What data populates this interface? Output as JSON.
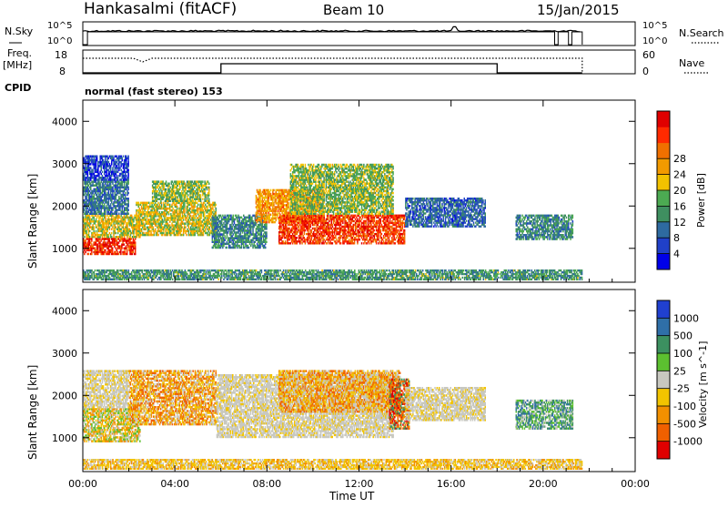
{
  "header": {
    "station": "Hankasalmi (fitACF)",
    "beam": "Beam 10",
    "date": "15/Jan/2015"
  },
  "noise_panel": {
    "left_label": "N.Sky",
    "right_label": "N.Search",
    "left_ticks": [
      "10^5",
      "10^0"
    ],
    "right_ticks": [
      "10^5",
      "10^0"
    ],
    "search_noise_steps": [
      {
        "x": 0.0,
        "level": "low"
      },
      {
        "x": 0.2,
        "level": "high"
      },
      {
        "x": 20.5,
        "level": "low"
      },
      {
        "x": 20.65,
        "level": "high"
      },
      {
        "x": 21.1,
        "level": "low"
      },
      {
        "x": 21.25,
        "level": "high"
      },
      {
        "x": 21.7,
        "level": "low"
      }
    ]
  },
  "freq_panel": {
    "left_label_1": "Freq.",
    "left_label_2": "[MHz]",
    "right_label": "Nave",
    "left_ticks": [
      "18",
      "8"
    ],
    "right_ticks": [
      "60",
      "0"
    ]
  },
  "cpid": {
    "label": "CPID",
    "program": "normal (fast stereo) 153"
  },
  "chart_data": [
    {
      "type": "heatmap",
      "title": "",
      "quantity": "Power",
      "xlabel": "",
      "ylabel": "Slant Range [km]",
      "x_unit_hours": [
        0,
        24
      ],
      "ylim": [
        200,
        4500
      ],
      "yticks": [
        1000,
        2000,
        3000,
        4000
      ],
      "colorbar": {
        "label": "Power [dB]",
        "ticks": [
          "4",
          "8",
          "12",
          "16",
          "20",
          "24",
          "28"
        ],
        "colors": [
          "#0000e8",
          "#2040c8",
          "#2e6aa0",
          "#3f8f60",
          "#4caa52",
          "#f2c200",
          "#f29a00",
          "#f07000",
          "#ff2a00",
          "#e00000"
        ]
      },
      "regions": [
        {
          "t": [
            0.0,
            2.3
          ],
          "r": [
            850,
            1250
          ],
          "level": 0.92
        },
        {
          "t": [
            0.0,
            2.5
          ],
          "r": [
            1250,
            1800
          ],
          "level": 0.55
        },
        {
          "t": [
            0.0,
            2.0
          ],
          "r": [
            1800,
            2600
          ],
          "level": 0.25
        },
        {
          "t": [
            0.0,
            2.0
          ],
          "r": [
            2600,
            3200
          ],
          "level": 0.12
        },
        {
          "t": [
            2.3,
            5.8
          ],
          "r": [
            1300,
            2100
          ],
          "level": 0.55
        },
        {
          "t": [
            3.0,
            5.5
          ],
          "r": [
            2100,
            2600
          ],
          "level": 0.45
        },
        {
          "t": [
            5.6,
            8.0
          ],
          "r": [
            1000,
            1800
          ],
          "level": 0.3
        },
        {
          "t": [
            7.5,
            10.5
          ],
          "r": [
            1600,
            2400
          ],
          "level": 0.7
        },
        {
          "t": [
            8.5,
            14.0
          ],
          "r": [
            1100,
            1800
          ],
          "level": 0.88
        },
        {
          "t": [
            9.0,
            13.5
          ],
          "r": [
            1800,
            3000
          ],
          "level": 0.45
        },
        {
          "t": [
            14.0,
            17.5
          ],
          "r": [
            1500,
            2200
          ],
          "level": 0.2
        },
        {
          "t": [
            18.8,
            21.3
          ],
          "r": [
            1200,
            1800
          ],
          "level": 0.3
        },
        {
          "t": [
            0.0,
            21.7
          ],
          "r": [
            250,
            500
          ],
          "level": 0.35
        }
      ]
    },
    {
      "type": "heatmap",
      "title": "",
      "quantity": "Velocity",
      "xlabel": "Time UT",
      "ylabel": "Slant Range [km]",
      "x_unit_hours": [
        0,
        24
      ],
      "xticks": [
        "00:00",
        "04:00",
        "08:00",
        "12:00",
        "16:00",
        "20:00",
        "00:00"
      ],
      "ylim": [
        200,
        4500
      ],
      "yticks": [
        1000,
        2000,
        3000,
        4000
      ],
      "colorbar": {
        "label": "Velocity [m s^-1]",
        "ticks": [
          "1000",
          "500",
          "100",
          "25",
          "-25",
          "-100",
          "-500",
          "-1000"
        ],
        "colors": [
          "#2040d0",
          "#2f6fa8",
          "#3c9060",
          "#5cc030",
          "#c8c8c0",
          "#f2c400",
          "#f29000",
          "#f06000",
          "#e00000"
        ]
      },
      "regions": [
        {
          "t": [
            0.0,
            2.5
          ],
          "r": [
            900,
            1700
          ],
          "level": "positive-small"
        },
        {
          "t": [
            0.0,
            2.0
          ],
          "r": [
            1700,
            2600
          ],
          "level": "ground"
        },
        {
          "t": [
            2.0,
            5.8
          ],
          "r": [
            1300,
            2600
          ],
          "level": "negative-medium"
        },
        {
          "t": [
            5.8,
            13.5
          ],
          "r": [
            1000,
            2500
          ],
          "level": "ground"
        },
        {
          "t": [
            8.5,
            13.8
          ],
          "r": [
            1600,
            2600
          ],
          "level": "negative-medium"
        },
        {
          "t": [
            13.3,
            14.2
          ],
          "r": [
            1200,
            2400
          ],
          "level": "negative-large"
        },
        {
          "t": [
            14.0,
            17.5
          ],
          "r": [
            1400,
            2200
          ],
          "level": "ground"
        },
        {
          "t": [
            18.8,
            21.3
          ],
          "r": [
            1200,
            1900
          ],
          "level": "positive-medium"
        },
        {
          "t": [
            0.0,
            21.7
          ],
          "r": [
            250,
            500
          ],
          "level": "negative-small"
        }
      ]
    }
  ]
}
